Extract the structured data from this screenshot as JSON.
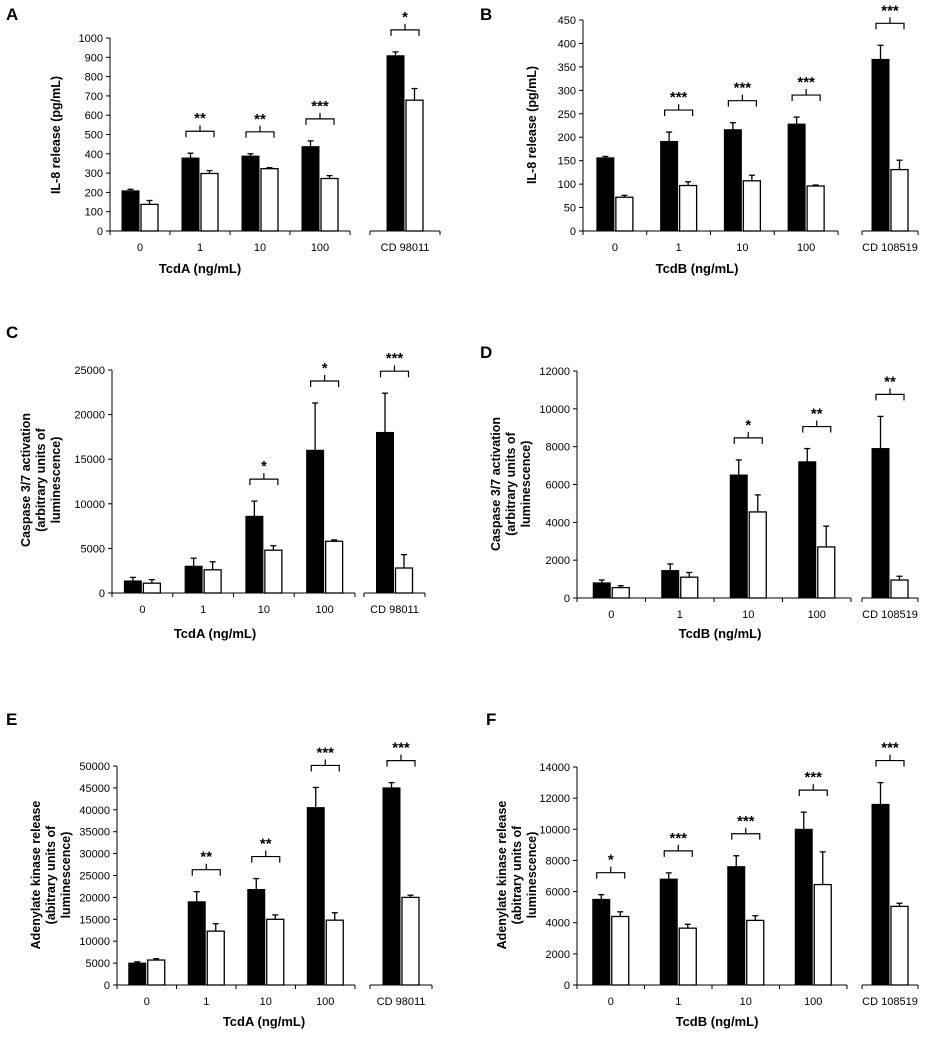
{
  "chart_data": [
    {
      "type": "bar",
      "panel": "A",
      "ylabel": [
        "IL-8 release (pg/mL)"
      ],
      "xlabel": "TcdA (ng/mL)",
      "yticks": [
        "0",
        "100",
        "200",
        "300",
        "400",
        "500",
        "600",
        "700",
        "800",
        "900",
        "1000"
      ],
      "ylim": [
        0,
        1000
      ],
      "categories": [
        "0",
        "1",
        "10",
        "100"
      ],
      "control_label": "CD 98011",
      "series": [
        {
          "name": "black",
          "color": "#000000",
          "values": [
            208,
            378,
            388,
            437
          ],
          "errors": [
            8,
            25,
            12,
            30
          ],
          "control": 908,
          "control_error": 20
        },
        {
          "name": "white",
          "color": "#ffffff",
          "values": [
            138,
            298,
            323,
            272
          ],
          "errors": [
            20,
            15,
            5,
            15
          ],
          "control": 678,
          "control_error": 60
        }
      ],
      "significance": [
        "",
        "**",
        "**",
        "***",
        "*"
      ]
    },
    {
      "type": "bar",
      "panel": "B",
      "ylabel": [
        "IL-8 release (pg/mL)"
      ],
      "xlabel": "TcdB (ng/mL)",
      "yticks": [
        "0",
        "50",
        "100",
        "150",
        "200",
        "250",
        "300",
        "350",
        "400",
        "450"
      ],
      "ylim": [
        0,
        450
      ],
      "categories": [
        "0",
        "1",
        "10",
        "100"
      ],
      "control_label": "CD 108519",
      "series": [
        {
          "name": "black",
          "color": "#000000",
          "values": [
            156,
            191,
            216,
            228
          ],
          "errors": [
            3,
            20,
            15,
            15
          ],
          "control": 366,
          "control_error": 30
        },
        {
          "name": "white",
          "color": "#ffffff",
          "values": [
            72,
            97,
            107,
            96
          ],
          "errors": [
            4,
            8,
            12,
            2
          ],
          "control": 131,
          "control_error": 20
        }
      ],
      "significance": [
        "",
        "***",
        "***",
        "***",
        "***"
      ]
    },
    {
      "type": "bar",
      "panel": "C",
      "ylabel": [
        "Caspase 3/7 activation",
        "(arbitrary units of",
        "luminescence)"
      ],
      "xlabel": "TcdA (ng/mL)",
      "yticks": [
        "0",
        "5000",
        "10000",
        "15000",
        "20000",
        "25000"
      ],
      "ylim": [
        0,
        25000
      ],
      "categories": [
        "0",
        "1",
        "10",
        "100"
      ],
      "control_label": "CD 98011",
      "series": [
        {
          "name": "black",
          "color": "#000000",
          "values": [
            1350,
            3000,
            8600,
            16000
          ],
          "errors": [
            400,
            900,
            1700,
            5300
          ],
          "control": 18000,
          "control_error": 4400
        },
        {
          "name": "white",
          "color": "#ffffff",
          "values": [
            1100,
            2600,
            4800,
            5800
          ],
          "errors": [
            400,
            900,
            500,
            150
          ],
          "control": 2800,
          "control_error": 1500
        }
      ],
      "significance": [
        "",
        "",
        "*",
        "*",
        "***"
      ]
    },
    {
      "type": "bar",
      "panel": "D",
      "ylabel": [
        "Caspase 3/7 activation",
        "(arbitrary units of",
        "luminescence)"
      ],
      "xlabel": "TcdB (ng/mL)",
      "yticks": [
        "0",
        "2000",
        "4000",
        "6000",
        "8000",
        "10000",
        "12000"
      ],
      "ylim": [
        0,
        12000
      ],
      "categories": [
        "0",
        "1",
        "10",
        "100"
      ],
      "control_label": "CD 108519",
      "series": [
        {
          "name": "black",
          "color": "#000000",
          "values": [
            800,
            1450,
            6500,
            7200
          ],
          "errors": [
            150,
            350,
            800,
            700
          ],
          "control": 7900,
          "control_error": 1700
        },
        {
          "name": "white",
          "color": "#ffffff",
          "values": [
            550,
            1100,
            4550,
            2700
          ],
          "errors": [
            100,
            250,
            900,
            1100
          ],
          "control": 950,
          "control_error": 200
        }
      ],
      "significance": [
        "",
        "",
        "*",
        "**",
        "**"
      ]
    },
    {
      "type": "bar",
      "panel": "E",
      "ylabel": [
        "Adenylate kinase release",
        "(abitrary units of",
        "luminescence)"
      ],
      "xlabel": "TcdA (ng/mL)",
      "yticks": [
        "0",
        "5000",
        "10000",
        "15000",
        "20000",
        "25000",
        "30000",
        "35000",
        "40000",
        "45000",
        "50000"
      ],
      "ylim": [
        0,
        50000
      ],
      "categories": [
        "0",
        "1",
        "10",
        "100"
      ],
      "control_label": "CD 98011",
      "series": [
        {
          "name": "black",
          "color": "#000000",
          "values": [
            5000,
            19000,
            21800,
            40500
          ],
          "errors": [
            300,
            2300,
            2500,
            4600
          ],
          "control": 45000,
          "control_error": 1200
        },
        {
          "name": "white",
          "color": "#ffffff",
          "values": [
            5700,
            12300,
            15000,
            14800
          ],
          "errors": [
            300,
            1700,
            1000,
            1700
          ],
          "control": 20000,
          "control_error": 500
        }
      ],
      "significance": [
        "",
        "**",
        "**",
        "***",
        "***"
      ]
    },
    {
      "type": "bar",
      "panel": "F",
      "ylabel": [
        "Adenylate kinase release",
        "(abitrary units of",
        "luminescence)"
      ],
      "xlabel": "TcdB (ng/mL)",
      "yticks": [
        "0",
        "2000",
        "4000",
        "6000",
        "8000",
        "10000",
        "12000",
        "14000"
      ],
      "ylim": [
        0,
        14000
      ],
      "categories": [
        "0",
        "1",
        "10",
        "100"
      ],
      "control_label": "CD 108519",
      "series": [
        {
          "name": "black",
          "color": "#000000",
          "values": [
            5500,
            6800,
            7600,
            10000
          ],
          "errors": [
            300,
            400,
            700,
            1100
          ],
          "control": 11600,
          "control_error": 1400
        },
        {
          "name": "white",
          "color": "#ffffff",
          "values": [
            4400,
            3650,
            4150,
            6450
          ],
          "errors": [
            300,
            250,
            300,
            2100
          ],
          "control": 5050,
          "control_error": 200
        }
      ],
      "significance": [
        "*",
        "***",
        "***",
        "***",
        "***"
      ]
    }
  ]
}
